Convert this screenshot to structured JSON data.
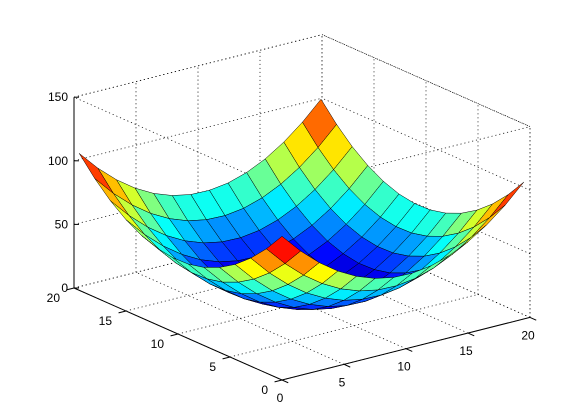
{
  "chart_data": {
    "type": "surface",
    "title": "",
    "xlabel": "",
    "ylabel": "",
    "zlabel": "",
    "surface": "z = (x - 10)^2 / 2 + (y - 10)^2 / 2 + ... (paraboloid sampled on 0..20 grid, step 1.5)",
    "x_range": [
      0,
      20
    ],
    "y_range": [
      0,
      20
    ],
    "z_range": [
      0,
      150
    ],
    "grid_step": 1.5,
    "xticks": [
      "0",
      "5",
      "10",
      "15",
      "20"
    ],
    "yticks": [
      "0",
      "5",
      "10",
      "15",
      "20"
    ],
    "zticks": [
      "0",
      "50",
      "100",
      "150"
    ],
    "colormap": "jet",
    "grid": true,
    "box": true
  }
}
